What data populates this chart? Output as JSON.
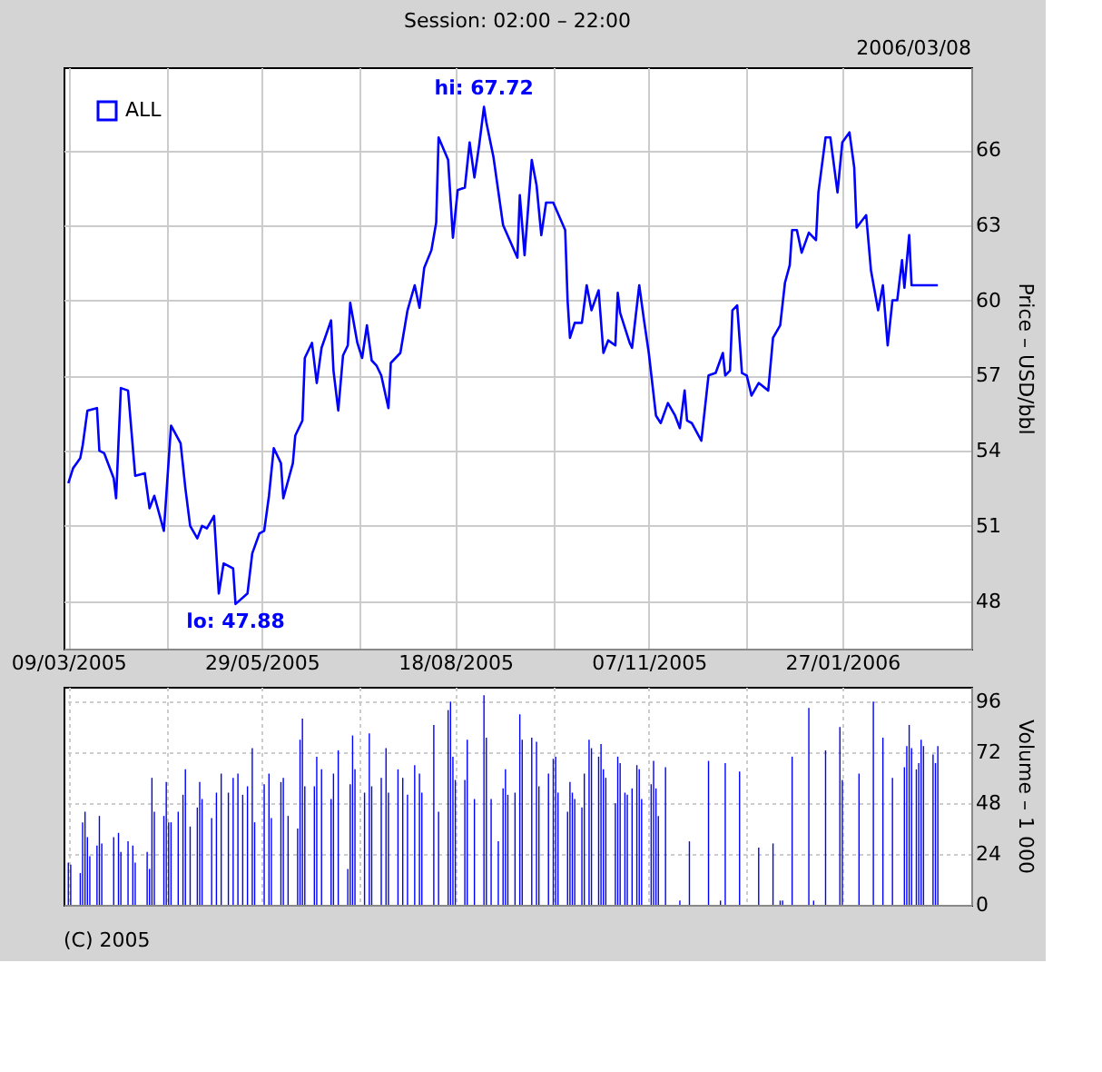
{
  "chart_data": [
    {
      "type": "line",
      "title": "Session: 02:00 – 22:00",
      "ylabel": "Price – USD/bbl",
      "legend": "top left",
      "grid": true,
      "xlim": [
        "2005-03-07",
        "2006-03-22"
      ],
      "xticks": [
        {
          "value": "2005-03-09",
          "label": "09/03/2005"
        },
        {
          "value": "2005-04-19",
          "label": null
        },
        {
          "value": "2005-05-29",
          "label": "29/05/2005"
        },
        {
          "value": "2005-07-09",
          "label": null
        },
        {
          "value": "2005-08-18",
          "label": "18/08/2005"
        },
        {
          "value": "2005-09-28",
          "label": null
        },
        {
          "value": "2005-11-07",
          "label": "07/11/2005"
        },
        {
          "value": "2005-12-18",
          "label": null
        },
        {
          "value": "2006-01-27",
          "label": "27/01/2006"
        }
      ],
      "ylim": [
        46.1,
        69.3
      ],
      "yticks": [
        48,
        51,
        54,
        57,
        60,
        63,
        66
      ],
      "x": [
        "2005-03-09",
        "2005-03-11",
        "2005-03-14",
        "2005-03-15",
        "2005-03-17",
        "2005-03-21",
        "2005-03-22",
        "2005-03-24",
        "2005-03-28",
        "2005-03-29",
        "2005-03-31",
        "2005-04-03",
        "2005-04-06",
        "2005-04-10",
        "2005-04-12",
        "2005-04-14",
        "2005-04-18",
        "2005-04-21",
        "2005-04-25",
        "2005-04-27",
        "2005-04-29",
        "2005-05-02",
        "2005-05-04",
        "2005-05-06",
        "2005-05-09",
        "2005-05-11",
        "2005-05-13",
        "2005-05-17",
        "2005-05-18",
        "2005-05-23",
        "2005-05-25",
        "2005-05-28",
        "2005-05-30",
        "2005-06-01",
        "2005-06-03",
        "2005-06-06",
        "2005-06-07",
        "2005-06-11",
        "2005-06-12",
        "2005-06-15",
        "2005-06-16",
        "2005-06-19",
        "2005-06-21",
        "2005-06-23",
        "2005-06-27",
        "2005-06-28",
        "2005-06-30",
        "2005-07-02",
        "2005-07-04",
        "2005-07-05",
        "2005-07-08",
        "2005-07-10",
        "2005-07-12",
        "2005-07-14",
        "2005-07-16",
        "2005-07-18",
        "2005-07-21",
        "2005-07-22",
        "2005-07-26",
        "2005-07-29",
        "2005-08-01",
        "2005-08-03",
        "2005-08-05",
        "2005-08-08",
        "2005-08-10",
        "2005-08-11",
        "2005-08-15",
        "2005-08-17",
        "2005-08-19",
        "2005-08-22",
        "2005-08-24",
        "2005-08-26",
        "2005-08-28",
        "2005-08-30",
        "2005-08-31",
        "2005-09-03",
        "2005-09-07",
        "2005-09-13",
        "2005-09-14",
        "2005-09-16",
        "2005-09-19",
        "2005-09-21",
        "2005-09-23",
        "2005-09-25",
        "2005-09-28",
        "2005-10-03",
        "2005-10-04",
        "2005-10-05",
        "2005-10-07",
        "2005-10-10",
        "2005-10-12",
        "2005-10-14",
        "2005-10-17",
        "2005-10-19",
        "2005-10-21",
        "2005-10-24",
        "2005-10-25",
        "2005-10-26",
        "2005-10-30",
        "2005-10-31",
        "2005-11-03",
        "2005-11-05",
        "2005-11-07",
        "2005-11-10",
        "2005-11-12",
        "2005-11-15",
        "2005-11-18",
        "2005-11-20",
        "2005-11-22",
        "2005-11-23",
        "2005-11-25",
        "2005-11-29",
        "2005-12-02",
        "2005-12-05",
        "2005-12-08",
        "2005-12-09",
        "2005-12-11",
        "2005-12-12",
        "2005-12-14",
        "2005-12-16",
        "2005-12-18",
        "2005-12-20",
        "2005-12-23",
        "2005-12-27",
        "2005-12-29",
        "2006-01-01",
        "2006-01-03",
        "2006-01-05",
        "2006-01-06",
        "2006-01-08",
        "2006-01-10",
        "2006-01-13",
        "2006-01-16",
        "2006-01-17",
        "2006-01-20",
        "2006-01-22",
        "2006-01-25",
        "2006-01-27",
        "2006-01-30",
        "2006-02-01",
        "2006-02-02",
        "2006-02-06",
        "2006-02-08",
        "2006-02-11",
        "2006-02-13",
        "2006-02-15",
        "2006-02-17",
        "2006-02-19",
        "2006-02-21",
        "2006-02-22",
        "2006-02-24",
        "2006-02-25",
        "2006-03-08"
      ],
      "series": [
        {
          "name": "ALL",
          "color": "#0000ff",
          "values": [
            52.7,
            53.3,
            53.7,
            54.2,
            55.6,
            55.7,
            54.0,
            53.9,
            52.9,
            52.1,
            56.5,
            56.4,
            53.0,
            53.1,
            51.7,
            52.2,
            50.8,
            55.0,
            54.3,
            52.5,
            51.0,
            50.5,
            51.0,
            50.9,
            51.4,
            48.3,
            49.5,
            49.3,
            47.88,
            48.3,
            49.9,
            50.7,
            50.8,
            52.2,
            54.1,
            53.5,
            52.1,
            53.5,
            54.6,
            55.2,
            57.7,
            58.3,
            56.7,
            58.1,
            59.2,
            57.2,
            55.6,
            57.8,
            58.2,
            59.9,
            58.3,
            57.7,
            59.0,
            57.6,
            57.4,
            57.0,
            55.7,
            57.5,
            57.9,
            59.6,
            60.6,
            59.7,
            61.3,
            62.0,
            63.1,
            66.5,
            65.6,
            62.5,
            64.4,
            64.5,
            66.3,
            64.9,
            66.2,
            67.72,
            67.1,
            65.7,
            63.0,
            61.7,
            64.2,
            61.8,
            65.6,
            64.6,
            62.6,
            63.9,
            63.9,
            62.8,
            60.0,
            58.5,
            59.1,
            59.1,
            60.6,
            59.6,
            60.4,
            57.9,
            58.4,
            58.2,
            60.3,
            59.5,
            58.3,
            58.1,
            60.6,
            59.2,
            57.9,
            55.4,
            55.1,
            55.9,
            55.4,
            54.9,
            56.4,
            55.2,
            55.1,
            54.4,
            57.0,
            57.1,
            57.9,
            57.0,
            57.2,
            59.6,
            59.8,
            57.1,
            57.0,
            56.2,
            56.7,
            56.4,
            58.5,
            59.0,
            60.7,
            61.4,
            62.8,
            62.8,
            61.9,
            62.7,
            62.4,
            64.3,
            66.5,
            66.5,
            64.3,
            66.3,
            66.7,
            65.3,
            62.9,
            63.4,
            61.2,
            59.6,
            60.6,
            58.2,
            60.0,
            60.0,
            61.6,
            60.5,
            62.6,
            60.6,
            60.6
          ]
        }
      ],
      "annotations": [
        "2006/03/08",
        {
          "text": "hi: 67.72",
          "x": "2005-08-30",
          "y": 67.72
        },
        {
          "text": "lo: 47.88",
          "x": "2005-05-18",
          "y": 47.88
        }
      ]
    },
    {
      "type": "bar",
      "ylabel": "Volume – 1 000",
      "grid": true,
      "tick_labels": "y",
      "xlim": [
        "2005-03-07",
        "2006-03-22"
      ],
      "xticks": [
        {
          "value": "2005-03-09",
          "label": null
        },
        {
          "value": "2005-04-19",
          "label": null
        },
        {
          "value": "2005-05-29",
          "label": null
        },
        {
          "value": "2005-07-09",
          "label": null
        },
        {
          "value": "2005-08-18",
          "label": null
        },
        {
          "value": "2005-09-28",
          "label": null
        },
        {
          "value": "2005-11-07",
          "label": null
        },
        {
          "value": "2005-12-18",
          "label": null
        },
        {
          "value": "2006-01-27",
          "label": null
        }
      ],
      "ylim": [
        0,
        103
      ],
      "yticks": [
        0,
        24,
        48,
        72,
        96
      ],
      "x": [
        "2005-03-09",
        "2005-03-10",
        "2005-03-14",
        "2005-03-15",
        "2005-03-16",
        "2005-03-17",
        "2005-03-18",
        "2005-03-21",
        "2005-03-22",
        "2005-03-23",
        "2005-03-28",
        "2005-03-30",
        "2005-03-31",
        "2005-04-03",
        "2005-04-05",
        "2005-04-06",
        "2005-04-11",
        "2005-04-12",
        "2005-04-13",
        "2005-04-14",
        "2005-04-18",
        "2005-04-19",
        "2005-04-20",
        "2005-04-21",
        "2005-04-24",
        "2005-04-26",
        "2005-04-27",
        "2005-04-29",
        "2005-05-02",
        "2005-05-03",
        "2005-05-04",
        "2005-05-08",
        "2005-05-10",
        "2005-05-12",
        "2005-05-15",
        "2005-05-17",
        "2005-05-19",
        "2005-05-21",
        "2005-05-23",
        "2005-05-25",
        "2005-05-26",
        "2005-05-30",
        "2005-06-01",
        "2005-06-02",
        "2005-06-06",
        "2005-06-07",
        "2005-06-09",
        "2005-06-13",
        "2005-06-14",
        "2005-06-15",
        "2005-06-16",
        "2005-06-20",
        "2005-06-21",
        "2005-06-23",
        "2005-06-27",
        "2005-06-28",
        "2005-06-30",
        "2005-07-04",
        "2005-07-05",
        "2005-07-06",
        "2005-07-07",
        "2005-07-11",
        "2005-07-13",
        "2005-07-14",
        "2005-07-18",
        "2005-07-20",
        "2005-07-21",
        "2005-07-25",
        "2005-07-27",
        "2005-07-29",
        "2005-08-01",
        "2005-08-03",
        "2005-08-04",
        "2005-08-09",
        "2005-08-11",
        "2005-08-15",
        "2005-08-16",
        "2005-08-17",
        "2005-08-18",
        "2005-08-22",
        "2005-08-23",
        "2005-08-26",
        "2005-08-30",
        "2005-08-31",
        "2005-09-02",
        "2005-09-05",
        "2005-09-07",
        "2005-09-08",
        "2005-09-09",
        "2005-09-12",
        "2005-09-14",
        "2005-09-15",
        "2005-09-19",
        "2005-09-21",
        "2005-09-22",
        "2005-09-26",
        "2005-09-28",
        "2005-09-29",
        "2005-09-30",
        "2005-10-04",
        "2005-10-05",
        "2005-10-06",
        "2005-10-07",
        "2005-10-10",
        "2005-10-11",
        "2005-10-13",
        "2005-10-14",
        "2005-10-17",
        "2005-10-18",
        "2005-10-19",
        "2005-10-20",
        "2005-10-24",
        "2005-10-25",
        "2005-10-26",
        "2005-10-28",
        "2005-10-29",
        "2005-10-31",
        "2005-11-02",
        "2005-11-03",
        "2005-11-04",
        "2005-11-08",
        "2005-11-09",
        "2005-11-10",
        "2005-11-11",
        "2005-11-14",
        "2005-11-20",
        "2005-11-24",
        "2005-12-02",
        "2005-12-07",
        "2005-12-09",
        "2005-12-15",
        "2005-12-23",
        "2005-12-29",
        "2006-01-01",
        "2006-01-02",
        "2006-01-06",
        "2006-01-13",
        "2006-01-15",
        "2006-01-20",
        "2006-01-26",
        "2006-01-27",
        "2006-02-03",
        "2006-02-09",
        "2006-02-13",
        "2006-02-17",
        "2006-02-22",
        "2006-02-23",
        "2006-02-24",
        "2006-02-25",
        "2006-02-27",
        "2006-02-28",
        "2006-03-01",
        "2006-03-02",
        "2006-03-06",
        "2006-03-07",
        "2006-03-08"
      ],
      "series": [
        {
          "color": "#0000ff",
          "values": [
            20,
            19,
            15,
            39,
            44,
            32,
            23,
            28,
            42,
            29,
            32,
            34,
            25,
            30,
            28,
            20,
            25,
            17,
            60,
            44,
            42,
            58,
            39,
            39,
            44,
            52,
            64,
            37,
            46,
            58,
            50,
            41,
            53,
            62,
            53,
            60,
            62,
            52,
            56,
            74,
            39,
            57,
            62,
            41,
            58,
            60,
            42,
            36,
            78,
            88,
            56,
            56,
            70,
            64,
            50,
            62,
            73,
            17,
            57,
            80,
            64,
            53,
            81,
            56,
            60,
            74,
            53,
            64,
            60,
            52,
            66,
            62,
            53,
            85,
            44,
            92,
            96,
            70,
            59,
            59,
            78,
            50,
            99,
            79,
            50,
            30,
            55,
            64,
            52,
            53,
            90,
            78,
            79,
            77,
            56,
            62,
            69,
            70,
            53,
            44,
            58,
            53,
            50,
            46,
            62,
            78,
            74,
            70,
            76,
            64,
            60,
            48,
            70,
            67,
            53,
            52,
            55,
            66,
            64,
            50,
            57,
            68,
            55,
            42,
            65,
            2,
            30,
            68,
            2,
            67,
            63,
            27,
            29,
            2,
            2,
            70,
            93,
            2,
            73,
            84,
            59,
            62,
            96,
            79,
            60,
            65,
            75,
            85,
            74,
            64,
            67,
            78,
            75,
            71,
            67,
            75
          ]
        }
      ],
      "annotations": [
        "(C) 2005"
      ]
    }
  ]
}
